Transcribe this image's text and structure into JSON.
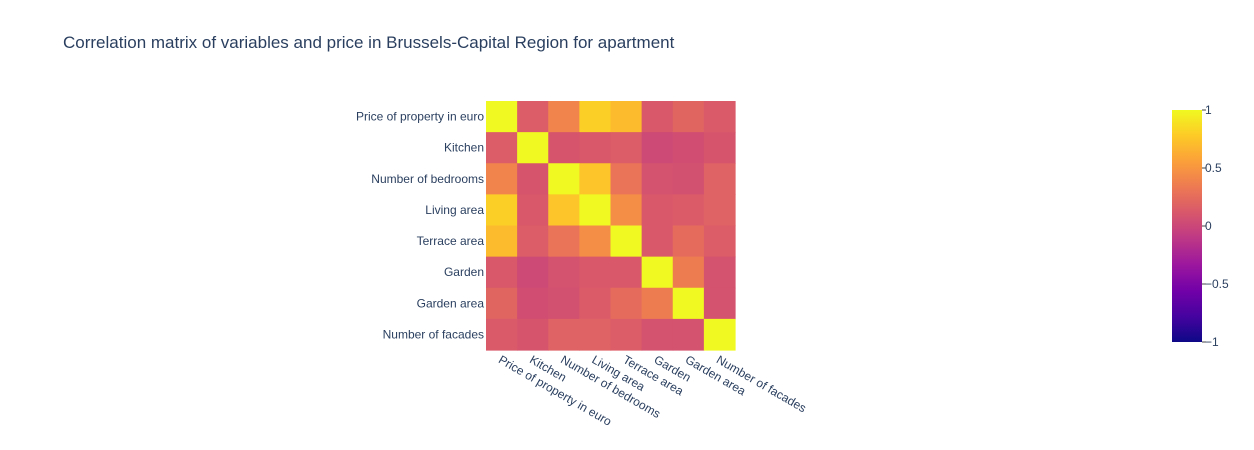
{
  "chart_data": {
    "type": "heatmap",
    "title": "Correlation matrix of variables and price in Brussels-Capital Region for apartment",
    "x": [
      "Price of property in euro",
      "Kitchen",
      "Number of bedrooms",
      "Living area",
      "Terrace area",
      "Garden",
      "Garden area",
      "Number of facades"
    ],
    "y": [
      "Price of property in euro",
      "Kitchen",
      "Number of bedrooms",
      "Living area",
      "Terrace area",
      "Garden",
      "Garden area",
      "Number of facades"
    ],
    "z": [
      [
        1.0,
        0.15,
        0.4,
        0.8,
        0.7,
        0.12,
        0.2,
        0.13
      ],
      [
        0.15,
        1.0,
        0.1,
        0.12,
        0.15,
        0.02,
        0.05,
        0.1
      ],
      [
        0.4,
        0.1,
        1.0,
        0.75,
        0.3,
        0.08,
        0.07,
        0.18
      ],
      [
        0.8,
        0.12,
        0.75,
        1.0,
        0.45,
        0.12,
        0.14,
        0.18
      ],
      [
        0.7,
        0.15,
        0.3,
        0.45,
        1.0,
        0.12,
        0.25,
        0.15
      ],
      [
        0.12,
        0.02,
        0.08,
        0.12,
        0.12,
        1.0,
        0.35,
        0.08
      ],
      [
        0.2,
        0.05,
        0.07,
        0.14,
        0.25,
        0.35,
        1.0,
        0.08
      ],
      [
        0.13,
        0.1,
        0.18,
        0.18,
        0.15,
        0.08,
        0.08,
        1.0
      ]
    ],
    "zrange": [
      -1,
      1
    ],
    "colorscale": "plasma",
    "colorbar": {
      "ticks": [
        1,
        0.5,
        0,
        -0.5,
        -1
      ],
      "tick_labels": [
        "1",
        "0.5",
        "0",
        "−0.5",
        "−1"
      ]
    }
  },
  "colors": {
    "text": "#2a3f5f",
    "plasma": [
      "#0d0887",
      "#46039f",
      "#7201a8",
      "#9c179e",
      "#bd3786",
      "#d8576b",
      "#ed7953",
      "#fb9f3a",
      "#fdca26",
      "#f0f921"
    ]
  }
}
